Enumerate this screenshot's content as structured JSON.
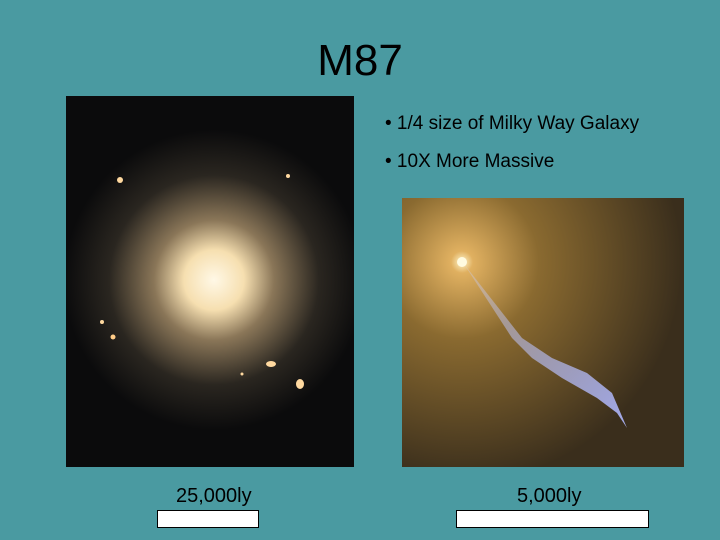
{
  "title": "M87",
  "bullets": [
    "• 1/4 size of Milky Way Galaxy",
    "• 10X More Massive"
  ],
  "scales": [
    "25,000ly",
    "5,000ly"
  ]
}
